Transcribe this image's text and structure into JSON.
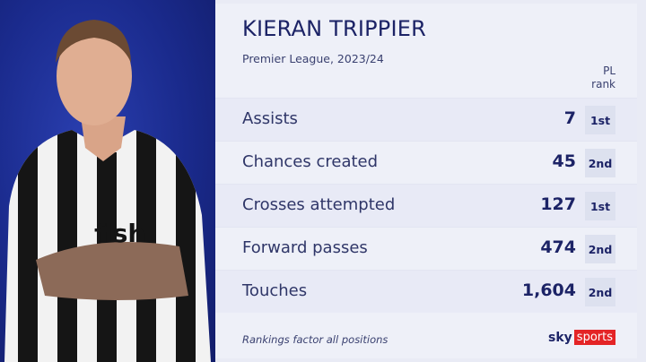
{
  "player": {
    "name": "KIERAN TRIPPIER",
    "subtitle": "Premier League, 2023/24"
  },
  "rank_header": {
    "line1": "PL",
    "line2": "rank"
  },
  "stats": [
    {
      "label": "Assists",
      "value": "7",
      "rank": "1st"
    },
    {
      "label": "Chances created",
      "value": "45",
      "rank": "2nd"
    },
    {
      "label": "Crosses attempted",
      "value": "127",
      "rank": "1st"
    },
    {
      "label": "Forward passes",
      "value": "474",
      "rank": "2nd"
    },
    {
      "label": "Touches",
      "value": "1,604",
      "rank": "2nd"
    }
  ],
  "footnote": "Rankings factor all positions",
  "logo": {
    "sky": "sky",
    "sports": "sports"
  },
  "colors": {
    "background_left": "#1a2a8c",
    "title": "#1c2366",
    "logo_red": "#e42426"
  }
}
